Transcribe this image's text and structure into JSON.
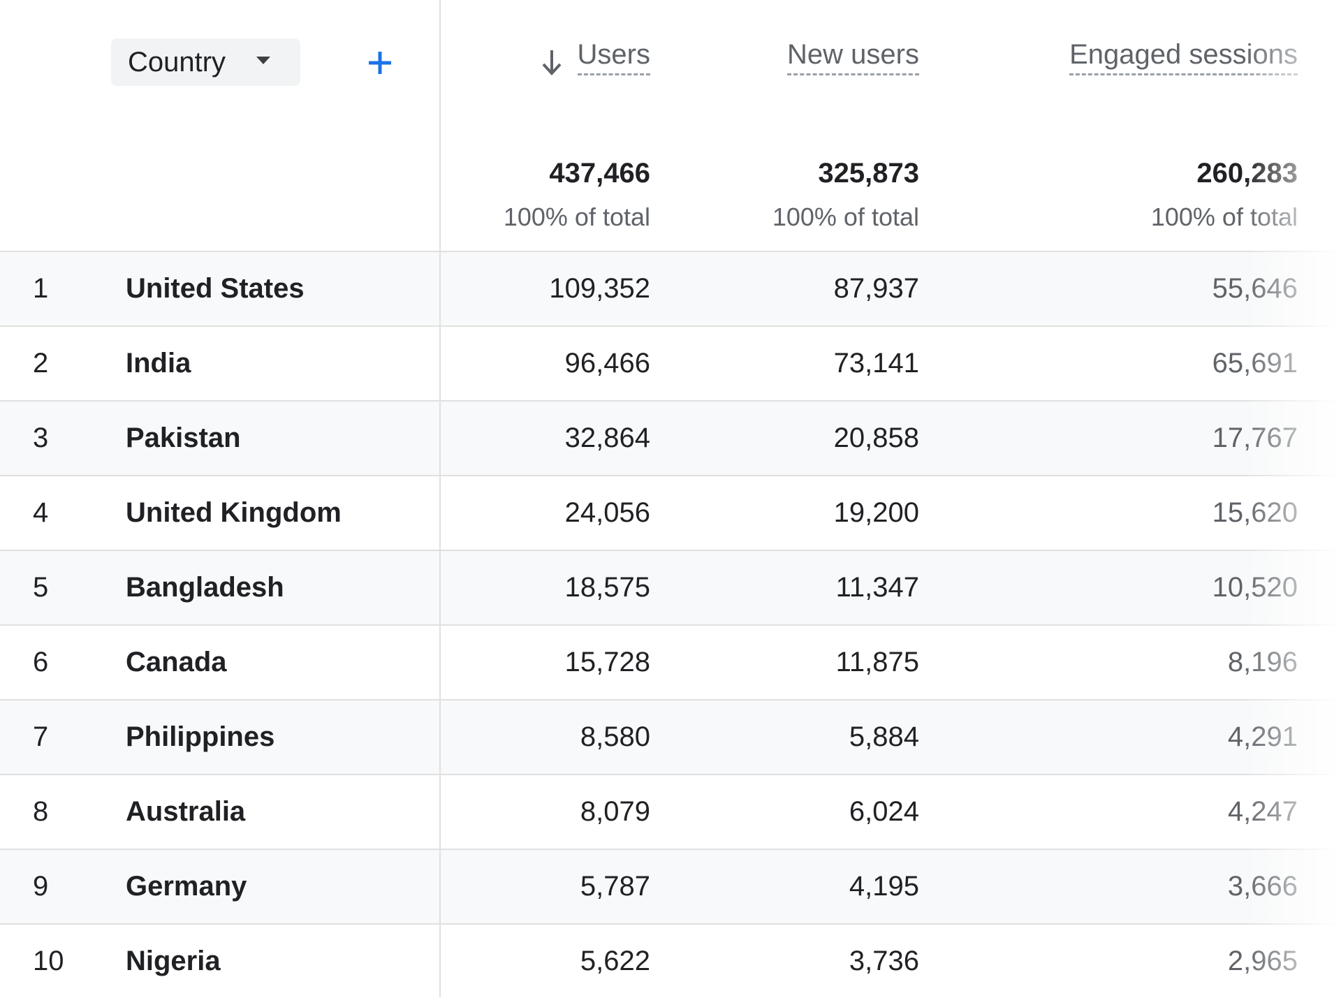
{
  "header": {
    "dimension": "Country",
    "columns": [
      "Users",
      "New users",
      "Engaged sessions"
    ]
  },
  "totals": [
    {
      "value": "437,466",
      "share": "100% of total"
    },
    {
      "value": "325,873",
      "share": "100% of total"
    },
    {
      "value": "260,283",
      "share": "100% of total"
    }
  ],
  "rows": [
    [
      "1",
      "United States",
      "109,352",
      "87,937",
      "55,646"
    ],
    [
      "2",
      "India",
      "96,466",
      "73,141",
      "65,691"
    ],
    [
      "3",
      "Pakistan",
      "32,864",
      "20,858",
      "17,767"
    ],
    [
      "4",
      "United Kingdom",
      "24,056",
      "19,200",
      "15,620"
    ],
    [
      "5",
      "Bangladesh",
      "18,575",
      "11,347",
      "10,520"
    ],
    [
      "6",
      "Canada",
      "15,728",
      "11,875",
      "8,196"
    ],
    [
      "7",
      "Philippines",
      "8,580",
      "5,884",
      "4,291"
    ],
    [
      "8",
      "Australia",
      "8,079",
      "6,024",
      "4,247"
    ],
    [
      "9",
      "Germany",
      "5,787",
      "4,195",
      "3,666"
    ],
    [
      "10",
      "Nigeria",
      "5,622",
      "3,736",
      "2,965"
    ]
  ]
}
